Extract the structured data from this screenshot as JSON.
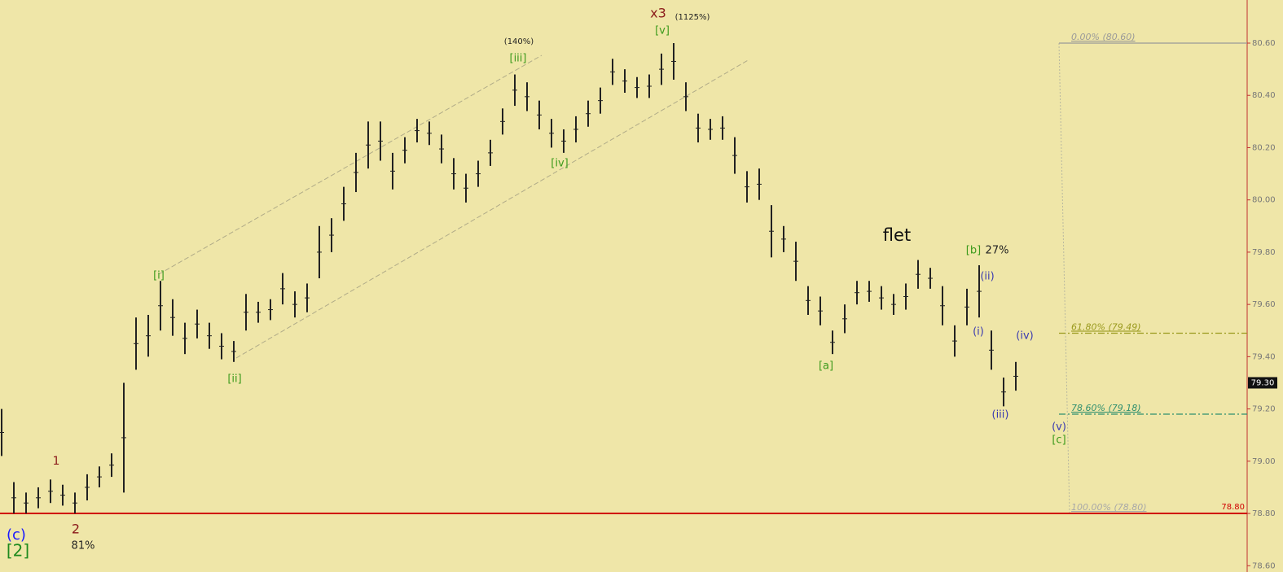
{
  "chart_data": {
    "type": "range-bar",
    "ylim": [
      78.576,
      80.765
    ],
    "yticks": [
      {
        "value": 78.6,
        "label": "78.60"
      },
      {
        "value": 78.8,
        "label": "78.80"
      },
      {
        "value": 79,
        "label": "79.00"
      },
      {
        "value": 79.2,
        "label": "79.20"
      },
      {
        "value": 79.4,
        "label": "79.40"
      },
      {
        "value": 79.6,
        "label": "79.60"
      },
      {
        "value": 79.8,
        "label": "79.80"
      },
      {
        "value": 80,
        "label": "80.00"
      },
      {
        "value": 80.2,
        "label": "80.20"
      },
      {
        "value": 80.4,
        "label": "80.40"
      },
      {
        "value": 80.6,
        "label": "80.60"
      }
    ],
    "color": "#222222",
    "high": [
      79.2,
      78.92,
      78.88,
      78.9,
      78.93,
      78.91,
      78.88,
      78.95,
      78.98,
      79.03,
      79.3,
      79.55,
      79.56,
      79.69,
      79.62,
      79.53,
      79.58,
      79.53,
      79.49,
      79.46,
      79.64,
      79.61,
      79.62,
      79.72,
      79.65,
      79.68,
      79.9,
      79.93,
      80.05,
      80.18,
      80.3,
      80.3,
      80.18,
      80.24,
      80.31,
      80.3,
      80.25,
      80.16,
      80.1,
      80.15,
      80.23,
      80.35,
      80.48,
      80.45,
      80.38,
      80.31,
      80.27,
      80.32,
      80.38,
      80.43,
      80.54,
      80.5,
      80.47,
      80.48,
      80.56,
      80.6,
      80.45,
      80.33,
      80.31,
      80.32,
      80.24,
      80.11,
      80.12,
      79.98,
      79.9,
      79.84,
      79.67,
      79.63,
      79.5,
      79.6,
      79.69,
      79.69,
      79.67,
      79.64,
      79.68,
      79.77,
      79.74,
      79.67,
      79.52,
      79.66,
      79.75,
      79.5,
      79.32,
      79.38
    ],
    "low": [
      79.02,
      78.8,
      78.8,
      78.82,
      78.84,
      78.83,
      78.8,
      78.85,
      78.9,
      78.94,
      78.88,
      79.35,
      79.4,
      79.5,
      79.48,
      79.41,
      79.47,
      79.43,
      79.39,
      79.38,
      79.5,
      79.53,
      79.54,
      79.6,
      79.55,
      79.57,
      79.7,
      79.8,
      79.92,
      80.03,
      80.12,
      80.15,
      80.04,
      80.14,
      80.22,
      80.21,
      80.14,
      80.04,
      79.99,
      80.05,
      80.13,
      80.25,
      80.36,
      80.34,
      80.27,
      80.2,
      80.18,
      80.22,
      80.28,
      80.33,
      80.44,
      80.41,
      80.39,
      80.39,
      80.44,
      80.46,
      80.34,
      80.22,
      80.23,
      80.23,
      80.1,
      79.99,
      80.0,
      79.78,
      79.8,
      79.69,
      79.56,
      79.52,
      79.41,
      79.49,
      79.6,
      79.61,
      79.58,
      79.56,
      79.58,
      79.66,
      79.66,
      79.52,
      79.4,
      79.52,
      79.55,
      79.35,
      79.21,
      79.27
    ],
    "current_price": {
      "value": 79.3,
      "label": "79.30"
    },
    "support": {
      "value": 78.8,
      "label": "78.80",
      "color": "#d00000"
    },
    "fib_levels": [
      {
        "value": 80.6,
        "label": "0.00% (80.60)",
        "color": "#999999"
      },
      {
        "value": 79.49,
        "label": "61.80% (79.49)",
        "color": "#9a9a1e"
      },
      {
        "value": 79.18,
        "label": "78.60% (79.18)",
        "color": "#2f8f6f"
      },
      {
        "value": 78.8,
        "label": "100.00% (78.80)",
        "color": "#a8a8a8"
      }
    ],
    "annotations": [
      {
        "text": "(c)",
        "color": "#1a1aff"
      },
      {
        "text": "[2]",
        "color": "#1e8a1e"
      },
      {
        "text": "1",
        "color": "#8b1a1a"
      },
      {
        "text": "2",
        "color": "#8b1a1a"
      },
      {
        "text": "81%",
        "color": "#222222"
      },
      {
        "text": "[i]",
        "color": "#3c9a1c"
      },
      {
        "text": "[ii]",
        "color": "#3c9a1c"
      },
      {
        "text": "(140%)",
        "color": "#222222"
      },
      {
        "text": "[iii]",
        "color": "#3c9a1c"
      },
      {
        "text": "[iv]",
        "color": "#3c9a1c"
      },
      {
        "text": "x3",
        "color": "#8b1a1a"
      },
      {
        "text": "(1125%)",
        "color": "#222222"
      },
      {
        "text": "[v]",
        "color": "#3c9a1c"
      },
      {
        "text": "flet",
        "color": "#111111"
      },
      {
        "text": "[a]",
        "color": "#3c9a1c"
      },
      {
        "text": "[b]",
        "color": "#3c9a1c"
      },
      {
        "text": "27%",
        "color": "#222222"
      },
      {
        "text": "(ii)",
        "color": "#3b3bb0"
      },
      {
        "text": "(i)",
        "color": "#3b3bb0"
      },
      {
        "text": "(iv)",
        "color": "#3b3bb0"
      },
      {
        "text": "(iii)",
        "color": "#3b3bb0"
      },
      {
        "text": "(v)",
        "color": "#3b3bb0"
      },
      {
        "text": "[c]",
        "color": "#3c9a1c"
      }
    ]
  }
}
